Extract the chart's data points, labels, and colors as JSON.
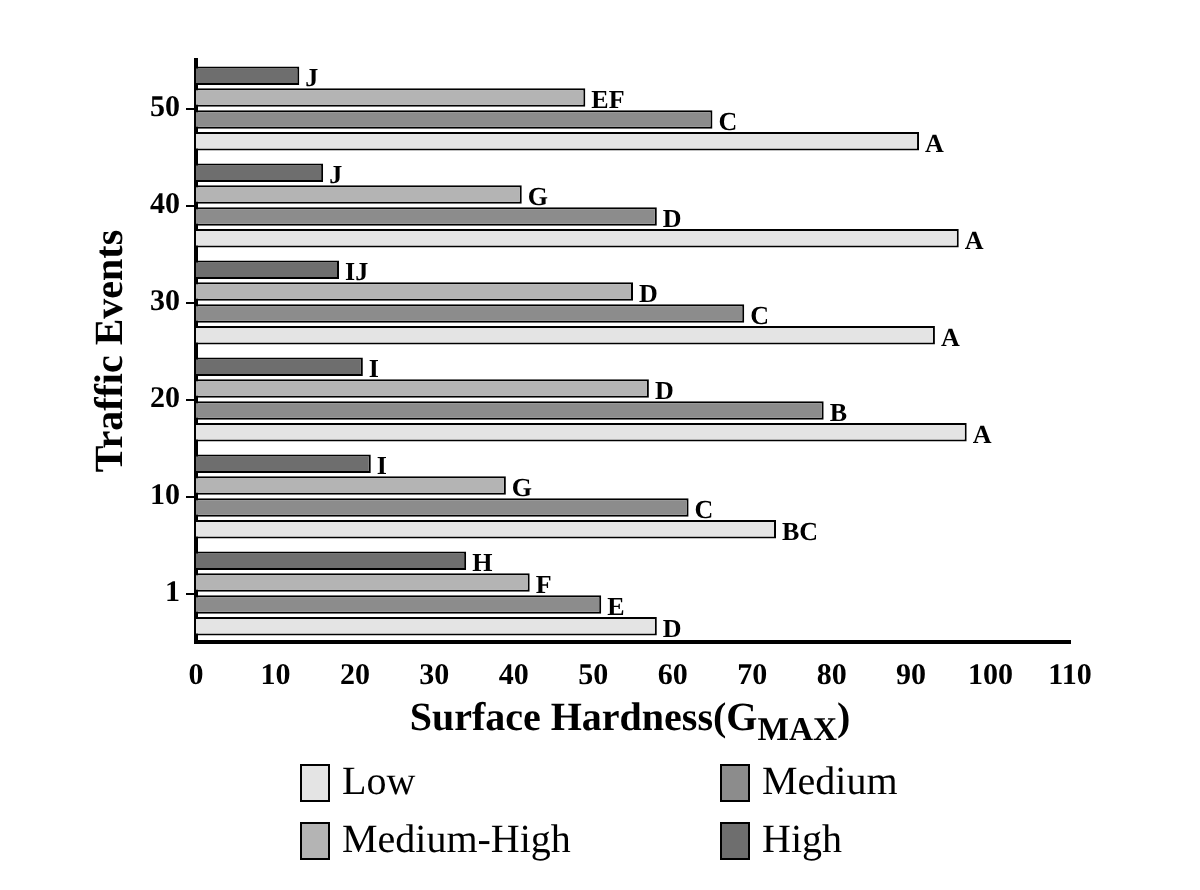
{
  "chart_data": {
    "type": "bar",
    "orientation": "horizontal",
    "xlabel": "Surface Hardness(G$_{MAX}$)",
    "ylabel": "Traffic Events",
    "categories": [
      "50",
      "40",
      "30",
      "20",
      "10",
      "1"
    ],
    "xlim": [
      0,
      110
    ],
    "xticks": [
      0,
      10,
      20,
      30,
      40,
      50,
      60,
      70,
      80,
      90,
      100,
      110
    ],
    "grid": false,
    "legend": "bottom",
    "series": [
      {
        "name": "High",
        "color": "#6e6e6e",
        "values": [
          13,
          16,
          18,
          21,
          22,
          34
        ],
        "value_labels": [
          "J",
          "J",
          "IJ",
          "I",
          "I",
          "H"
        ]
      },
      {
        "name": "Medium-High",
        "color": "#b4b4b4",
        "values": [
          49,
          41,
          55,
          57,
          39,
          42
        ],
        "value_labels": [
          "EF",
          "G",
          "D",
          "D",
          "G",
          "F"
        ]
      },
      {
        "name": "Medium",
        "color": "#8c8c8c",
        "values": [
          65,
          58,
          69,
          79,
          62,
          51
        ],
        "value_labels": [
          "C",
          "D",
          "C",
          "B",
          "C",
          "E"
        ]
      },
      {
        "name": "Low",
        "color": "#e4e4e4",
        "values": [
          91,
          96,
          93,
          97,
          73,
          58
        ],
        "value_labels": [
          "A",
          "A",
          "A",
          "A",
          "BC",
          "D"
        ]
      }
    ]
  }
}
